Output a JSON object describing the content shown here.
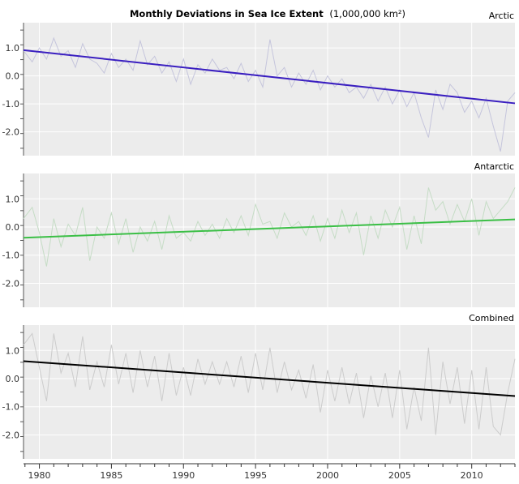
{
  "chart_data": {
    "type": "line",
    "title": "Monthly Deviations in Sea Ice Extent",
    "title_unit": "(1,000,000 km²)",
    "x_ticks": [
      "1980",
      "1985",
      "1990",
      "1995",
      "2000",
      "2005",
      "2010"
    ],
    "x_tick_values": [
      1980,
      1985,
      1990,
      1995,
      2000,
      2005,
      2010
    ],
    "xlim": [
      1978.9,
      1984.9,
      2013.0
    ],
    "x_range": [
      1978.9,
      2013.0
    ],
    "grid": true,
    "panels": [
      {
        "name": "Arctic",
        "ylim": [
          -2.85,
          1.9
        ],
        "y_ticks": [
          "1.0",
          "0.0",
          "-1.0",
          "-2.0"
        ],
        "y_tick_values": [
          1.0,
          0.0,
          -1.0,
          -2.0
        ],
        "anomaly_color": "#c5c5dc",
        "trend_color": "#3a1fc0",
        "trend": {
          "x": [
            1978.9,
            2013.0
          ],
          "y": [
            0.92,
            -0.98
          ]
        },
        "anomaly": {
          "x": [
            1978.9,
            1979.5,
            1980.0,
            1980.5,
            1981.0,
            1981.5,
            1982.0,
            1982.5,
            1983.0,
            1983.5,
            1984.0,
            1984.5,
            1985.0,
            1985.5,
            1986.0,
            1986.5,
            1987.0,
            1987.5,
            1988.0,
            1988.5,
            1989.0,
            1989.5,
            1990.0,
            1990.5,
            1991.0,
            1991.5,
            1992.0,
            1992.5,
            1993.0,
            1993.5,
            1994.0,
            1994.5,
            1995.0,
            1995.5,
            1996.0,
            1996.5,
            1997.0,
            1997.5,
            1998.0,
            1998.5,
            1999.0,
            1999.5,
            2000.0,
            2000.5,
            2001.0,
            2001.5,
            2002.0,
            2002.5,
            2003.0,
            2003.5,
            2004.0,
            2004.5,
            2005.0,
            2005.5,
            2006.0,
            2006.5,
            2007.0,
            2007.5,
            2008.0,
            2008.5,
            2009.0,
            2009.5,
            2010.0,
            2010.5,
            2011.0,
            2011.5,
            2012.0,
            2012.5,
            2013.0
          ],
          "y": [
            0.9,
            0.5,
            1.0,
            0.6,
            1.35,
            0.7,
            0.9,
            0.3,
            1.15,
            0.6,
            0.45,
            0.1,
            0.8,
            0.3,
            0.6,
            0.2,
            1.25,
            0.4,
            0.7,
            0.1,
            0.5,
            -0.2,
            0.6,
            -0.3,
            0.4,
            0.1,
            0.6,
            0.2,
            0.3,
            -0.1,
            0.45,
            -0.2,
            0.2,
            -0.4,
            1.3,
            0.0,
            0.3,
            -0.4,
            0.1,
            -0.3,
            0.2,
            -0.5,
            0.0,
            -0.4,
            -0.1,
            -0.6,
            -0.4,
            -0.8,
            -0.3,
            -0.9,
            -0.4,
            -1.0,
            -0.5,
            -1.1,
            -0.6,
            -1.5,
            -2.2,
            -0.5,
            -1.2,
            -0.3,
            -0.6,
            -1.3,
            -0.9,
            -1.5,
            -0.8,
            -1.8,
            -2.7,
            -0.9,
            -0.6
          ]
        }
      },
      {
        "name": "Antarctic",
        "ylim": [
          -2.85,
          1.9
        ],
        "y_ticks": [
          "1.0",
          "0.0",
          "-1.0",
          "-2.0"
        ],
        "y_tick_values": [
          1.0,
          0.0,
          -1.0,
          -2.0
        ],
        "anomaly_color": "#c5dcc5",
        "trend_color": "#3bbf46",
        "trend": {
          "x": [
            1978.9,
            2013.0
          ],
          "y": [
            -0.38,
            0.27
          ]
        },
        "anomaly": {
          "x": [
            1978.9,
            1979.5,
            1980.0,
            1980.5,
            1981.0,
            1981.5,
            1982.0,
            1982.5,
            1983.0,
            1983.5,
            1984.0,
            1984.5,
            1985.0,
            1985.5,
            1986.0,
            1986.5,
            1987.0,
            1987.5,
            1988.0,
            1988.5,
            1989.0,
            1989.5,
            1990.0,
            1990.5,
            1991.0,
            1991.5,
            1992.0,
            1992.5,
            1993.0,
            1993.5,
            1994.0,
            1994.5,
            1995.0,
            1995.5,
            1996.0,
            1996.5,
            1997.0,
            1997.5,
            1998.0,
            1998.5,
            1999.0,
            1999.5,
            2000.0,
            2000.5,
            2001.0,
            2001.5,
            2002.0,
            2002.5,
            2003.0,
            2003.5,
            2004.0,
            2004.5,
            2005.0,
            2005.5,
            2006.0,
            2006.5,
            2007.0,
            2007.5,
            2008.0,
            2008.5,
            2009.0,
            2009.5,
            2010.0,
            2010.5,
            2011.0,
            2011.5,
            2012.0,
            2012.5,
            2013.0
          ],
          "y": [
            0.3,
            0.7,
            -0.2,
            -1.4,
            0.3,
            -0.7,
            0.1,
            -0.3,
            0.7,
            -1.2,
            0.0,
            -0.4,
            0.5,
            -0.6,
            0.3,
            -0.9,
            0.0,
            -0.5,
            0.2,
            -0.8,
            0.4,
            -0.4,
            -0.2,
            -0.5,
            0.2,
            -0.3,
            0.1,
            -0.4,
            0.3,
            -0.2,
            0.4,
            -0.3,
            0.8,
            0.1,
            0.2,
            -0.4,
            0.5,
            0.0,
            0.2,
            -0.3,
            0.4,
            -0.5,
            0.3,
            -0.4,
            0.6,
            -0.2,
            0.5,
            -1.0,
            0.4,
            -0.4,
            0.6,
            0.0,
            0.7,
            -0.8,
            0.4,
            -0.6,
            1.4,
            0.6,
            0.9,
            0.1,
            0.8,
            0.2,
            1.0,
            -0.3,
            0.9,
            0.3,
            0.6,
            0.9,
            1.4
          ]
        }
      },
      {
        "name": "Combined",
        "ylim": [
          -2.85,
          1.9
        ],
        "y_ticks": [
          "1.0",
          "0.0",
          "-1.0",
          "-2.0"
        ],
        "y_tick_values": [
          1.0,
          0.0,
          -1.0,
          -2.0
        ],
        "anomaly_color": "#cccccc",
        "trend_color": "#000000",
        "trend": {
          "x": [
            1978.9,
            2013.0
          ],
          "y": [
            0.62,
            -0.62
          ]
        },
        "anomaly": {
          "x": [
            1978.9,
            1979.5,
            1980.0,
            1980.5,
            1981.0,
            1981.5,
            1982.0,
            1982.5,
            1983.0,
            1983.5,
            1984.0,
            1984.5,
            1985.0,
            1985.5,
            1986.0,
            1986.5,
            1987.0,
            1987.5,
            1988.0,
            1988.5,
            1989.0,
            1989.5,
            1990.0,
            1990.5,
            1991.0,
            1991.5,
            1992.0,
            1992.5,
            1993.0,
            1993.5,
            1994.0,
            1994.5,
            1995.0,
            1995.5,
            1996.0,
            1996.5,
            1997.0,
            1997.5,
            1998.0,
            1998.5,
            1999.0,
            1999.5,
            2000.0,
            2000.5,
            2001.0,
            2001.5,
            2002.0,
            2002.5,
            2003.0,
            2003.5,
            2004.0,
            2004.5,
            2005.0,
            2005.5,
            2006.0,
            2006.5,
            2007.0,
            2007.5,
            2008.0,
            2008.5,
            2009.0,
            2009.5,
            2010.0,
            2010.5,
            2011.0,
            2011.5,
            2012.0,
            2012.5,
            2013.0
          ],
          "y": [
            1.2,
            1.6,
            0.4,
            -0.8,
            1.6,
            0.2,
            0.9,
            -0.3,
            1.5,
            -0.4,
            0.6,
            -0.3,
            1.2,
            -0.2,
            0.9,
            -0.5,
            1.0,
            -0.3,
            0.8,
            -0.8,
            0.9,
            -0.6,
            0.4,
            -0.6,
            0.7,
            -0.2,
            0.6,
            -0.2,
            0.6,
            -0.3,
            0.8,
            -0.5,
            0.9,
            -0.4,
            1.1,
            -0.5,
            0.6,
            -0.4,
            0.3,
            -0.7,
            0.5,
            -1.2,
            0.3,
            -0.8,
            0.4,
            -0.9,
            0.2,
            -1.4,
            0.1,
            -1.0,
            0.2,
            -1.4,
            0.3,
            -1.8,
            -0.3,
            -1.5,
            1.1,
            -2.0,
            0.6,
            -0.9,
            0.4,
            -1.6,
            0.3,
            -1.8,
            0.4,
            -1.7,
            -2.0,
            -0.5,
            0.7
          ]
        }
      }
    ]
  }
}
